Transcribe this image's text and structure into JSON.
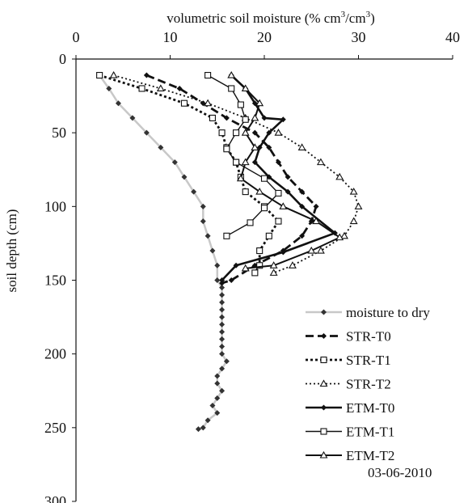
{
  "chart_data": {
    "type": "line",
    "x_label_main": "volumetric soil moisture (% cm",
    "x_label_sup1": "3",
    "x_label_mid": "/cm",
    "x_label_sup2": "3",
    "x_label_end": ")",
    "ylabel": "soil depth (cm)",
    "xlim": [
      0,
      40
    ],
    "ylim": [
      0,
      300
    ],
    "x_ticks": [
      "0",
      "10",
      "20",
      "30",
      "40"
    ],
    "y_ticks": [
      "0",
      "50",
      "100",
      "150",
      "200",
      "250",
      "300"
    ],
    "x_axis_position": "top",
    "y_axis_inverted": true,
    "grid": false,
    "legend_position": "bottom-right",
    "annotation": "03-06-2010",
    "series": [
      {
        "name": "moisture to dry",
        "color": "#c8c8c8",
        "dash": "solid",
        "width": 2.5,
        "marker": "diamond",
        "x": [
          2.5,
          3.5,
          4.5,
          6,
          7.5,
          9,
          10.5,
          11.5,
          12.5,
          13.5,
          13.5,
          14,
          14.5,
          15,
          15,
          15.5,
          15.5,
          15.5,
          15.5,
          15.5,
          15.5,
          15.5,
          15.5,
          15.5,
          15.5,
          16,
          15.5,
          15,
          15,
          15.5,
          15,
          14.5,
          15,
          14,
          13.5,
          13
        ],
        "y": [
          11,
          20,
          30,
          40,
          50,
          60,
          70,
          80,
          90,
          100,
          110,
          120,
          130,
          140,
          150,
          155,
          160,
          165,
          170,
          175,
          180,
          185,
          190,
          195,
          200,
          205,
          210,
          215,
          220,
          225,
          230,
          235,
          240,
          245,
          250,
          251
        ]
      },
      {
        "name": "STR-T0",
        "color": "#111111",
        "dash": "10,5",
        "width": 2.8,
        "marker": "diamond",
        "x": [
          7.5,
          11,
          13.5,
          16,
          19,
          20.5,
          21.5,
          22.5,
          24,
          25.5,
          25,
          24,
          22,
          19,
          16.5,
          15.5
        ],
        "y": [
          11,
          20,
          30,
          40,
          50,
          60,
          70,
          80,
          90,
          100,
          110,
          120,
          130,
          140,
          150,
          152
        ]
      },
      {
        "name": "STR-T1",
        "color": "#111111",
        "dash": "3,3",
        "width": 2.8,
        "marker": "square",
        "x": [
          2.5,
          7,
          11.5,
          14.5,
          15.5,
          16,
          17,
          17.5,
          18,
          20,
          21.5,
          20.5,
          19.5,
          19.5,
          19
        ],
        "y": [
          11,
          20,
          30,
          40,
          50,
          60,
          70,
          80,
          90,
          100,
          110,
          120,
          130,
          140,
          145
        ]
      },
      {
        "name": "STR-T2",
        "color": "#111111",
        "dash": "2,3",
        "width": 1.8,
        "marker": "triangle",
        "x": [
          4,
          9,
          14,
          18,
          21.5,
          24,
          26,
          28,
          29.5,
          30,
          29.5,
          28.5,
          26,
          23,
          21
        ],
        "y": [
          11,
          20,
          30,
          40,
          50,
          60,
          70,
          80,
          90,
          100,
          110,
          120,
          130,
          140,
          145
        ]
      },
      {
        "name": "ETM-T0",
        "color": "#111111",
        "dash": "solid",
        "width": 2.6,
        "marker": "diamond",
        "x": [
          16.5,
          18,
          19,
          20,
          22,
          20.5,
          19.5,
          19,
          20.5,
          22.5,
          24,
          27.5,
          22,
          17,
          15.5
        ],
        "y": [
          11,
          20,
          30,
          40,
          41,
          50,
          60,
          70,
          80,
          90,
          100,
          118,
          131,
          140,
          150
        ]
      },
      {
        "name": "ETM-T1",
        "color": "#111111",
        "dash": "solid",
        "width": 1.4,
        "marker": "square",
        "x": [
          14,
          16.5,
          17.5,
          18,
          17,
          16,
          17,
          20,
          21.5,
          20,
          18.5,
          16
        ],
        "y": [
          11,
          20,
          31,
          41,
          50,
          61,
          70,
          81,
          91,
          101,
          111,
          120
        ]
      },
      {
        "name": "ETM-T2",
        "color": "#111111",
        "dash": "solid",
        "width": 2,
        "marker": "triangle",
        "x": [
          16.5,
          18,
          19.5,
          19,
          18,
          19,
          18,
          17.5,
          19.5,
          22,
          25.5,
          28,
          25,
          21,
          18
        ],
        "y": [
          11,
          20,
          30,
          40,
          50,
          60,
          70,
          81,
          90,
          100,
          110,
          121,
          130,
          140,
          142
        ]
      }
    ]
  }
}
